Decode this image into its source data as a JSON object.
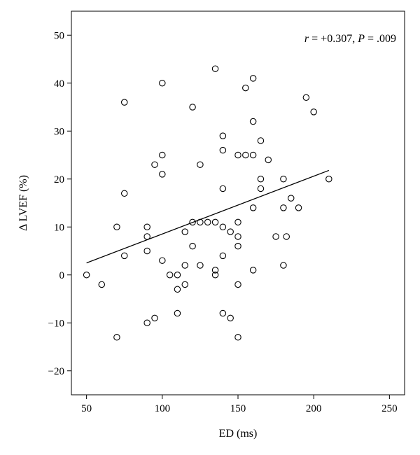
{
  "chart_data": {
    "type": "scatter",
    "title": "",
    "xlabel": "ED (ms)",
    "ylabel": "Δ LVEF (%)",
    "xlim": [
      40,
      260
    ],
    "ylim": [
      -25,
      55
    ],
    "xticks": [
      50,
      100,
      150,
      200,
      250
    ],
    "yticks": [
      -20,
      -10,
      0,
      10,
      20,
      30,
      40,
      50
    ],
    "xtick_labels": [
      "50",
      "100",
      "150",
      "200",
      "250"
    ],
    "ytick_labels": [
      "−20",
      "−10",
      "0",
      "10",
      "20",
      "30",
      "40",
      "50"
    ],
    "grid": false,
    "annotation": {
      "r_symbol": "r",
      "r_value": " = +0.307, ",
      "p_symbol": "P",
      "p_value": " = .009"
    },
    "fit_line": {
      "x": [
        50,
        210
      ],
      "y": [
        2.5,
        21.8
      ]
    },
    "points": [
      {
        "x": 50,
        "y": 0
      },
      {
        "x": 60,
        "y": -2
      },
      {
        "x": 70,
        "y": -13
      },
      {
        "x": 70,
        "y": 10
      },
      {
        "x": 75,
        "y": 36
      },
      {
        "x": 75,
        "y": 17
      },
      {
        "x": 75,
        "y": 4
      },
      {
        "x": 90,
        "y": 10
      },
      {
        "x": 90,
        "y": 8
      },
      {
        "x": 90,
        "y": 5
      },
      {
        "x": 90,
        "y": -10
      },
      {
        "x": 95,
        "y": 23
      },
      {
        "x": 95,
        "y": -9
      },
      {
        "x": 100,
        "y": 40
      },
      {
        "x": 100,
        "y": 25
      },
      {
        "x": 100,
        "y": 21
      },
      {
        "x": 100,
        "y": 3
      },
      {
        "x": 105,
        "y": 0
      },
      {
        "x": 110,
        "y": 0
      },
      {
        "x": 110,
        "y": -3
      },
      {
        "x": 110,
        "y": -8
      },
      {
        "x": 115,
        "y": 9
      },
      {
        "x": 115,
        "y": 2
      },
      {
        "x": 115,
        "y": -2
      },
      {
        "x": 120,
        "y": 35
      },
      {
        "x": 120,
        "y": 11
      },
      {
        "x": 120,
        "y": 6
      },
      {
        "x": 125,
        "y": 23
      },
      {
        "x": 125,
        "y": 11
      },
      {
        "x": 125,
        "y": 2
      },
      {
        "x": 130,
        "y": 11
      },
      {
        "x": 135,
        "y": 43
      },
      {
        "x": 135,
        "y": 11
      },
      {
        "x": 135,
        "y": 1
      },
      {
        "x": 135,
        "y": 0
      },
      {
        "x": 140,
        "y": 29
      },
      {
        "x": 140,
        "y": 26
      },
      {
        "x": 140,
        "y": 18
      },
      {
        "x": 140,
        "y": 10
      },
      {
        "x": 140,
        "y": 4
      },
      {
        "x": 140,
        "y": -8
      },
      {
        "x": 145,
        "y": 9
      },
      {
        "x": 145,
        "y": -9
      },
      {
        "x": 150,
        "y": 25
      },
      {
        "x": 150,
        "y": 11
      },
      {
        "x": 150,
        "y": 8
      },
      {
        "x": 150,
        "y": 6
      },
      {
        "x": 150,
        "y": -2
      },
      {
        "x": 150,
        "y": -13
      },
      {
        "x": 155,
        "y": 39
      },
      {
        "x": 155,
        "y": 25
      },
      {
        "x": 160,
        "y": 41
      },
      {
        "x": 160,
        "y": 32
      },
      {
        "x": 160,
        "y": 25
      },
      {
        "x": 160,
        "y": 14
      },
      {
        "x": 160,
        "y": 1
      },
      {
        "x": 165,
        "y": 28
      },
      {
        "x": 165,
        "y": 20
      },
      {
        "x": 165,
        "y": 18
      },
      {
        "x": 170,
        "y": 24
      },
      {
        "x": 175,
        "y": 8
      },
      {
        "x": 180,
        "y": 20
      },
      {
        "x": 180,
        "y": 14
      },
      {
        "x": 180,
        "y": 2
      },
      {
        "x": 182,
        "y": 8
      },
      {
        "x": 185,
        "y": 16
      },
      {
        "x": 190,
        "y": 14
      },
      {
        "x": 195,
        "y": 37
      },
      {
        "x": 200,
        "y": 34
      },
      {
        "x": 210,
        "y": 20
      }
    ]
  }
}
